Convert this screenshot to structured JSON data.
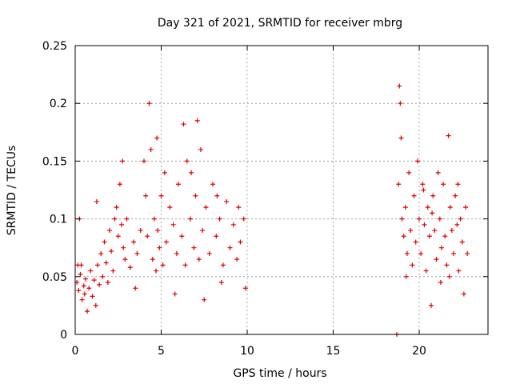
{
  "chart_data": {
    "type": "scatter",
    "title": "Day 321 of 2021, SRMTID for receiver mbrg",
    "xlabel": "GPS time / hours",
    "ylabel": "SRMTID / TECUs",
    "xlim": [
      0,
      24
    ],
    "ylim": [
      0,
      0.25
    ],
    "x_ticks": [
      0,
      5,
      10,
      15,
      20
    ],
    "x_tick_labels": [
      "0",
      "5",
      "10",
      "15",
      "20"
    ],
    "y_ticks": [
      0,
      0.05,
      0.1,
      0.15,
      0.2,
      0.25
    ],
    "y_tick_labels": [
      "0",
      "0.05",
      "0.1",
      "0.15",
      "0.2",
      "0.25"
    ],
    "grid": true,
    "marker": "+",
    "colors": {
      "series": "#e00000",
      "grid": "#a0a0a0",
      "axis": "#000000"
    },
    "series": [
      {
        "name": "SRMTID",
        "points": [
          [
            0.1,
            0.045
          ],
          [
            0.2,
            0.038
          ],
          [
            0.3,
            0.052
          ],
          [
            0.35,
            0.06
          ],
          [
            0.4,
            0.03
          ],
          [
            0.5,
            0.042
          ],
          [
            0.55,
            0.035
          ],
          [
            0.6,
            0.048
          ],
          [
            0.7,
            0.02
          ],
          [
            0.8,
            0.04
          ],
          [
            0.9,
            0.055
          ],
          [
            1.0,
            0.033
          ],
          [
            1.1,
            0.047
          ],
          [
            1.2,
            0.025
          ],
          [
            1.3,
            0.06
          ],
          [
            1.4,
            0.043
          ],
          [
            1.5,
            0.07
          ],
          [
            1.6,
            0.05
          ],
          [
            1.7,
            0.08
          ],
          [
            1.8,
            0.062
          ],
          [
            1.9,
            0.045
          ],
          [
            2.0,
            0.09
          ],
          [
            2.1,
            0.072
          ],
          [
            2.2,
            0.055
          ],
          [
            2.3,
            0.1
          ],
          [
            2.4,
            0.11
          ],
          [
            2.5,
            0.085
          ],
          [
            2.6,
            0.13
          ],
          [
            2.7,
            0.095
          ],
          [
            2.8,
            0.075
          ],
          [
            2.9,
            0.065
          ],
          [
            3.0,
            0.1
          ],
          [
            3.2,
            0.058
          ],
          [
            3.4,
            0.08
          ],
          [
            3.6,
            0.07
          ],
          [
            3.8,
            0.09
          ],
          [
            4.0,
            0.15
          ],
          [
            4.1,
            0.12
          ],
          [
            4.2,
            0.085
          ],
          [
            4.3,
            0.2
          ],
          [
            4.4,
            0.16
          ],
          [
            4.5,
            0.065
          ],
          [
            4.6,
            0.1
          ],
          [
            4.7,
            0.055
          ],
          [
            4.8,
            0.09
          ],
          [
            4.9,
            0.075
          ],
          [
            5.0,
            0.12
          ],
          [
            5.1,
            0.06
          ],
          [
            5.2,
            0.14
          ],
          [
            5.3,
            0.08
          ],
          [
            5.5,
            0.11
          ],
          [
            5.7,
            0.095
          ],
          [
            5.9,
            0.07
          ],
          [
            6.0,
            0.13
          ],
          [
            6.2,
            0.085
          ],
          [
            6.3,
            0.182
          ],
          [
            6.4,
            0.06
          ],
          [
            6.5,
            0.15
          ],
          [
            6.7,
            0.1
          ],
          [
            6.9,
            0.075
          ],
          [
            7.0,
            0.12
          ],
          [
            7.1,
            0.185
          ],
          [
            7.2,
            0.065
          ],
          [
            7.3,
            0.16
          ],
          [
            7.4,
            0.09
          ],
          [
            7.6,
            0.11
          ],
          [
            7.8,
            0.07
          ],
          [
            8.0,
            0.13
          ],
          [
            8.2,
            0.085
          ],
          [
            8.4,
            0.1
          ],
          [
            8.6,
            0.06
          ],
          [
            8.8,
            0.115
          ],
          [
            9.0,
            0.075
          ],
          [
            9.2,
            0.095
          ],
          [
            9.4,
            0.065
          ],
          [
            9.6,
            0.08
          ],
          [
            9.8,
            0.1
          ],
          [
            9.9,
            0.04
          ],
          [
            3.5,
            0.04
          ],
          [
            5.8,
            0.035
          ],
          [
            7.5,
            0.03
          ],
          [
            8.5,
            0.045
          ],
          [
            0.25,
            0.1
          ],
          [
            1.25,
            0.115
          ],
          [
            2.75,
            0.15
          ],
          [
            4.75,
            0.17
          ],
          [
            6.75,
            0.14
          ],
          [
            8.25,
            0.12
          ],
          [
            9.5,
            0.11
          ],
          [
            0.15,
            0.06
          ],
          [
            18.7,
            0.0
          ],
          [
            18.8,
            0.13
          ],
          [
            18.85,
            0.215
          ],
          [
            18.9,
            0.2
          ],
          [
            18.95,
            0.17
          ],
          [
            19.0,
            0.1
          ],
          [
            19.1,
            0.085
          ],
          [
            19.2,
            0.11
          ],
          [
            19.3,
            0.07
          ],
          [
            19.4,
            0.14
          ],
          [
            19.5,
            0.09
          ],
          [
            19.6,
            0.06
          ],
          [
            19.7,
            0.12
          ],
          [
            19.8,
            0.08
          ],
          [
            19.9,
            0.15
          ],
          [
            20.0,
            0.1
          ],
          [
            20.1,
            0.07
          ],
          [
            20.2,
            0.13
          ],
          [
            20.3,
            0.095
          ],
          [
            20.4,
            0.055
          ],
          [
            20.5,
            0.11
          ],
          [
            20.6,
            0.085
          ],
          [
            20.7,
            0.025
          ],
          [
            20.8,
            0.12
          ],
          [
            20.9,
            0.09
          ],
          [
            21.0,
            0.065
          ],
          [
            21.1,
            0.14
          ],
          [
            21.2,
            0.1
          ],
          [
            21.3,
            0.075
          ],
          [
            21.4,
            0.13
          ],
          [
            21.5,
            0.085
          ],
          [
            21.6,
            0.06
          ],
          [
            21.7,
            0.172
          ],
          [
            21.8,
            0.11
          ],
          [
            21.9,
            0.09
          ],
          [
            22.0,
            0.07
          ],
          [
            22.1,
            0.12
          ],
          [
            22.2,
            0.095
          ],
          [
            22.3,
            0.055
          ],
          [
            22.4,
            0.1
          ],
          [
            22.5,
            0.08
          ],
          [
            22.6,
            0.035
          ],
          [
            22.7,
            0.11
          ],
          [
            22.8,
            0.07
          ],
          [
            20.25,
            0.125
          ],
          [
            21.75,
            0.05
          ],
          [
            19.25,
            0.05
          ],
          [
            20.75,
            0.105
          ],
          [
            22.25,
            0.13
          ],
          [
            21.25,
            0.045
          ]
        ]
      }
    ]
  }
}
